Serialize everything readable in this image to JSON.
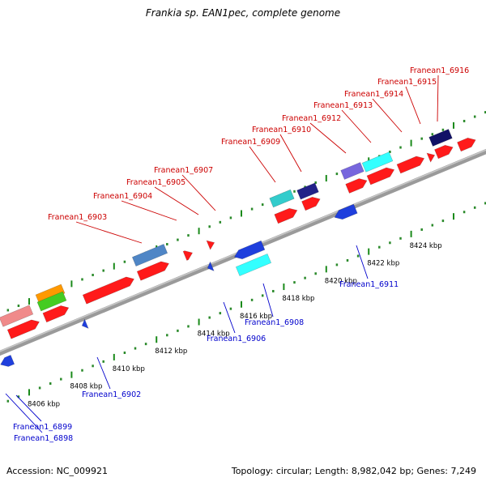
{
  "title": "Frankia sp. EAN1pec, complete genome",
  "footer": {
    "accession": "Accession: NC_009921",
    "stats": "Topology: circular; Length: 8,982,042 bp; Genes: 7,249"
  },
  "scale": {
    "unit": "kbp",
    "ticks": [
      {
        "label": "8406 kbp",
        "kbp": 8406
      },
      {
        "label": "8408 kbp",
        "kbp": 8408
      },
      {
        "label": "8410 kbp",
        "kbp": 8410
      },
      {
        "label": "8412 kbp",
        "kbp": 8412
      },
      {
        "label": "8414 kbp",
        "kbp": 8414
      },
      {
        "label": "8416 kbp",
        "kbp": 8416
      },
      {
        "label": "8418 kbp",
        "kbp": 8418
      },
      {
        "label": "8420 kbp",
        "kbp": 8420
      },
      {
        "label": "8422 kbp",
        "kbp": 8422
      },
      {
        "label": "8424 kbp",
        "kbp": 8424
      }
    ]
  },
  "colors": {
    "forward_label": "#cc0000",
    "reverse_label": "#0000cc",
    "backbone": "#8c8c8c",
    "minor_tick": "#2b8a2b",
    "major_tick": "#1a8a1a"
  },
  "genes": [
    {
      "label": "Franean1_6898",
      "strand": "reverse",
      "kbp": 8404.3
    },
    {
      "label": "Franean1_6899",
      "strand": "reverse",
      "kbp": 8404.8
    },
    {
      "label": "Franean1_6902",
      "strand": "reverse",
      "kbp": 8409.5
    },
    {
      "label": "Franean1_6903",
      "strand": "forward",
      "kbp": 8411.2
    },
    {
      "label": "Franean1_6904",
      "strand": "forward",
      "kbp": 8413.0
    },
    {
      "label": "Franean1_6905",
      "strand": "forward",
      "kbp": 8414.3
    },
    {
      "label": "Franean1_6906",
      "strand": "reverse",
      "kbp": 8414.6
    },
    {
      "label": "Franean1_6907",
      "strand": "forward",
      "kbp": 8414.9
    },
    {
      "label": "Franean1_6908",
      "strand": "reverse",
      "kbp": 8416.2
    },
    {
      "label": "Franean1_6909",
      "strand": "forward",
      "kbp": 8418.1
    },
    {
      "label": "Franean1_6910",
      "strand": "forward",
      "kbp": 8418.6
    },
    {
      "label": "Franean1_6911",
      "strand": "reverse",
      "kbp": 8420.6
    },
    {
      "label": "Franean1_6912",
      "strand": "forward",
      "kbp": 8420.9
    },
    {
      "label": "Franean1_6913",
      "strand": "forward",
      "kbp": 8421.7
    },
    {
      "label": "Franean1_6914",
      "strand": "forward",
      "kbp": 8423.0
    },
    {
      "label": "Franean1_6915",
      "strand": "forward",
      "kbp": 8424.0
    },
    {
      "label": "Franean1_6916",
      "strand": "forward",
      "kbp": 8424.4
    }
  ]
}
